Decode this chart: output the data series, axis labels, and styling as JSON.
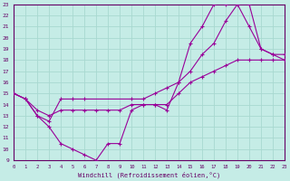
{
  "xlabel": "Windchill (Refroidissement éolien,°C)",
  "background_color": "#c5ece6",
  "grid_color": "#a8d8d0",
  "line_color": "#990099",
  "spine_color": "#660066",
  "xmin": 0,
  "xmax": 23,
  "ymin": 9,
  "ymax": 23,
  "line1_x": [
    0,
    1,
    2,
    3,
    4,
    5,
    6,
    7,
    8,
    9,
    10,
    11,
    12,
    13,
    14,
    15,
    16,
    17,
    18,
    19,
    20,
    21,
    22,
    23
  ],
  "line1_y": [
    15,
    14.5,
    13,
    12,
    10.5,
    10,
    9.5,
    9,
    10.5,
    10.5,
    13.5,
    14,
    14,
    13.5,
    16,
    19.5,
    21,
    23,
    23,
    23,
    21,
    19,
    18.5,
    18
  ],
  "line2_x": [
    0,
    1,
    2,
    3,
    4,
    5,
    6,
    7,
    8,
    9,
    10,
    11,
    12,
    13,
    14,
    15,
    16,
    17,
    18,
    19,
    20,
    21,
    22,
    23
  ],
  "line2_y": [
    15,
    14.5,
    13.5,
    13,
    13.5,
    13.5,
    13.5,
    13.5,
    13.5,
    13.5,
    14,
    14,
    14,
    14,
    15,
    16,
    16.5,
    17,
    17.5,
    18,
    18,
    18,
    18,
    18
  ],
  "line3_x": [
    0,
    1,
    2,
    3,
    4,
    5,
    6,
    10,
    11,
    12,
    13,
    14,
    15,
    16,
    17,
    18,
    19,
    20,
    21,
    22,
    23
  ],
  "line3_y": [
    15,
    14.5,
    13,
    12.5,
    14.5,
    14.5,
    14.5,
    14.5,
    14.5,
    15,
    15.5,
    16,
    17,
    18.5,
    19.5,
    21.5,
    23,
    23,
    19,
    18.5,
    18.5
  ]
}
